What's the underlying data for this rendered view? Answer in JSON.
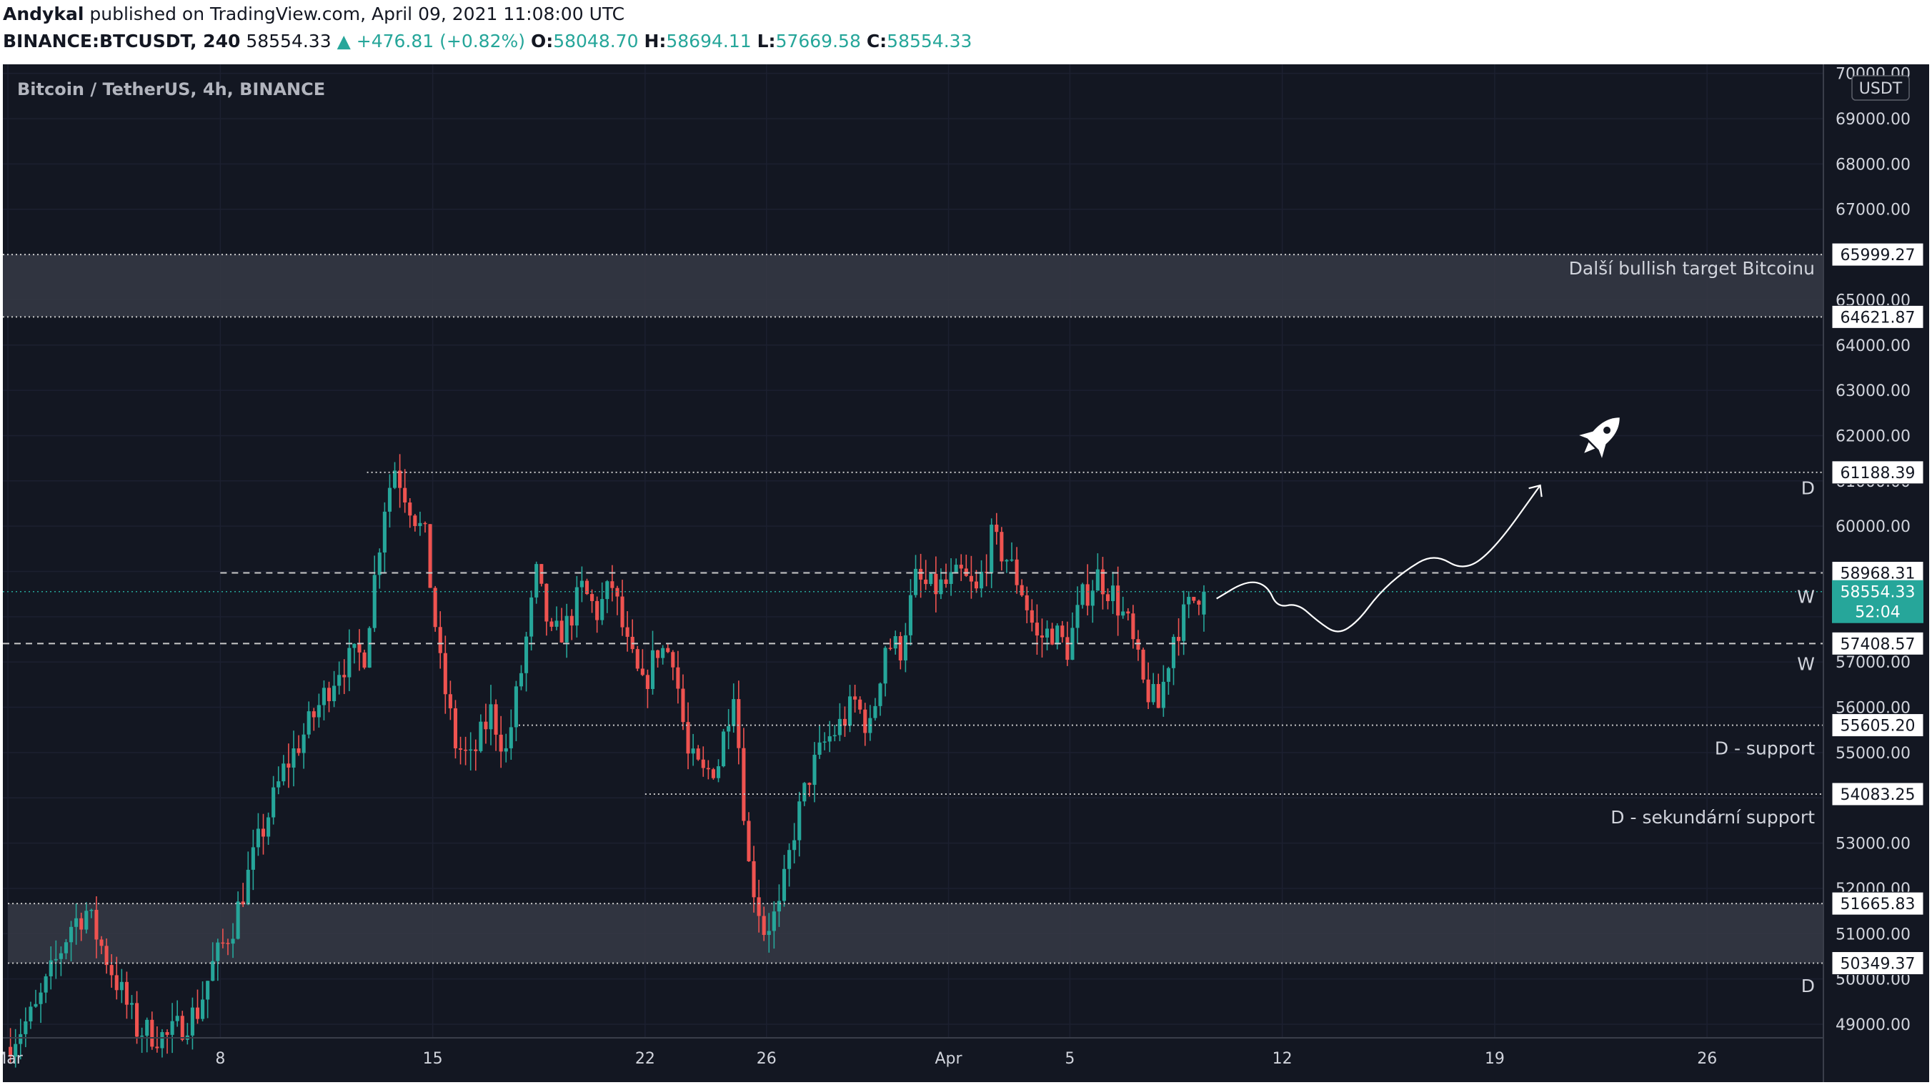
{
  "header": {
    "author": "Andykal",
    "published_text": "published on TradingView.com, April 09, 2021 11:08:00 UTC",
    "symbol": "BINANCE:BTCUSDT, 240",
    "last": "58554.33",
    "change": "▲ +476.81 (+0.82%)",
    "o_label": "O:",
    "o_value": "58048.70",
    "h_label": "H:",
    "h_value": "58694.11",
    "l_label": "L:",
    "l_value": "57669.58",
    "c_label": "C:",
    "c_value": "58554.33"
  },
  "chart_data": {
    "type": "candlestick",
    "title": "Bitcoin / TetherUS, 4h, BINANCE",
    "currency_badge": "USDT",
    "ylim": [
      48700,
      70200
    ],
    "xlim": [
      "2021-02-28T20:00",
      "2021-04-29T20:00"
    ],
    "y_ticks": [
      "49000.00",
      "50000.00",
      "51000.00",
      "52000.00",
      "53000.00",
      "54000.00",
      "55000.00",
      "56000.00",
      "57000.00",
      "58000.00",
      "59000.00",
      "60000.00",
      "61000.00",
      "62000.00",
      "63000.00",
      "64000.00",
      "65000.00",
      "66000.00",
      "67000.00",
      "68000.00",
      "69000.00",
      "70000.00"
    ],
    "x_ticks": [
      {
        "date": "2021-03-01",
        "label": "Mar"
      },
      {
        "date": "2021-03-08",
        "label": "8"
      },
      {
        "date": "2021-03-15",
        "label": "15"
      },
      {
        "date": "2021-03-22",
        "label": "22"
      },
      {
        "date": "2021-03-26",
        "label": "26"
      },
      {
        "date": "2021-04-01",
        "label": "Apr"
      },
      {
        "date": "2021-04-05",
        "label": "5"
      },
      {
        "date": "2021-04-12",
        "label": "12"
      },
      {
        "date": "2021-04-19",
        "label": "19"
      },
      {
        "date": "2021-04-26",
        "label": "26"
      }
    ],
    "candle_interval_hours": 4,
    "path": [
      [
        "2021-03-01T00:00",
        48500
      ],
      [
        "2021-03-02T00:00",
        49300
      ],
      [
        "2021-03-03T04:00",
        51200
      ],
      [
        "2021-03-03T16:00",
        51500
      ],
      [
        "2021-03-04T12:00",
        50200
      ],
      [
        "2021-03-05T08:00",
        48900
      ],
      [
        "2021-03-06T08:00",
        48700
      ],
      [
        "2021-03-07T08:00",
        49300
      ],
      [
        "2021-03-07T20:00",
        50300
      ],
      [
        "2021-03-08T12:00",
        51200
      ],
      [
        "2021-03-09T08:00",
        53000
      ],
      [
        "2021-03-10T04:00",
        54600
      ],
      [
        "2021-03-11T00:00",
        55600
      ],
      [
        "2021-03-12T00:00",
        56900
      ],
      [
        "2021-03-12T20:00",
        57200
      ],
      [
        "2021-03-13T12:00",
        60500
      ],
      [
        "2021-03-13T20:00",
        61300
      ],
      [
        "2021-03-14T08:00",
        60500
      ],
      [
        "2021-03-14T20:00",
        59700
      ],
      [
        "2021-03-15T08:00",
        56900
      ],
      [
        "2021-03-15T20:00",
        55200
      ],
      [
        "2021-03-16T08:00",
        54800
      ],
      [
        "2021-03-17T00:00",
        55900
      ],
      [
        "2021-03-17T12:00",
        55000
      ],
      [
        "2021-03-18T00:00",
        56800
      ],
      [
        "2021-03-18T12:00",
        58900
      ],
      [
        "2021-03-19T00:00",
        57500
      ],
      [
        "2021-03-19T12:00",
        57800
      ],
      [
        "2021-03-20T00:00",
        58600
      ],
      [
        "2021-03-20T12:00",
        58100
      ],
      [
        "2021-03-21T00:00",
        58700
      ],
      [
        "2021-03-21T12:00",
        57300
      ],
      [
        "2021-03-22T00:00",
        56400
      ],
      [
        "2021-03-22T12:00",
        57300
      ],
      [
        "2021-03-23T00:00",
        57200
      ],
      [
        "2021-03-23T12:00",
        54900
      ],
      [
        "2021-03-24T00:00",
        54500
      ],
      [
        "2021-03-24T12:00",
        54800
      ],
      [
        "2021-03-25T00:00",
        56500
      ],
      [
        "2021-03-25T12:00",
        52500
      ],
      [
        "2021-03-26T00:00",
        51100
      ],
      [
        "2021-03-26T12:00",
        51500
      ],
      [
        "2021-03-27T00:00",
        53300
      ],
      [
        "2021-03-27T12:00",
        54500
      ],
      [
        "2021-03-28T00:00",
        55200
      ],
      [
        "2021-03-28T12:00",
        55600
      ],
      [
        "2021-03-29T00:00",
        56100
      ],
      [
        "2021-03-29T12:00",
        55500
      ],
      [
        "2021-03-30T00:00",
        57400
      ],
      [
        "2021-03-30T12:00",
        57300
      ],
      [
        "2021-03-31T00:00",
        58800
      ],
      [
        "2021-03-31T12:00",
        58600
      ],
      [
        "2021-04-01T00:00",
        58700
      ],
      [
        "2021-04-01T12:00",
        58900
      ],
      [
        "2021-04-02T00:00",
        58500
      ],
      [
        "2021-04-02T12:00",
        59700
      ],
      [
        "2021-04-03T00:00",
        59300
      ],
      [
        "2021-04-03T12:00",
        58600
      ],
      [
        "2021-04-04T00:00",
        57500
      ],
      [
        "2021-04-04T12:00",
        57700
      ],
      [
        "2021-04-05T00:00",
        57300
      ],
      [
        "2021-04-05T12:00",
        58400
      ],
      [
        "2021-04-06T00:00",
        58900
      ],
      [
        "2021-04-06T12:00",
        58500
      ],
      [
        "2021-04-07T00:00",
        57800
      ],
      [
        "2021-04-07T12:00",
        56500
      ],
      [
        "2021-04-08T00:00",
        56000
      ],
      [
        "2021-04-08T12:00",
        57600
      ],
      [
        "2021-04-09T00:00",
        58200
      ],
      [
        "2021-04-09T08:00",
        58554
      ]
    ],
    "zones": [
      {
        "type": "rect",
        "y1": 64621.87,
        "y2": 65999.27,
        "x_start": "2021-02-28T20:00"
      },
      {
        "type": "rect",
        "y1": 50349.37,
        "y2": 51665.83,
        "x_start": "2021-03-01T00:00"
      }
    ],
    "levels": [
      {
        "price": 65999.27,
        "label": "65999.27",
        "style": "dotted",
        "x_start": "2021-02-28T20:00"
      },
      {
        "price": 64621.87,
        "label": "64621.87",
        "style": "dotted",
        "x_start": "2021-02-28T20:00"
      },
      {
        "price": 61188.39,
        "label": "61188.39",
        "style": "dotted",
        "x_start": "2021-03-12T20:00"
      },
      {
        "price": 58968.31,
        "label": "58968.31",
        "style": "dashed",
        "x_start": "2021-03-08T00:00"
      },
      {
        "price": 57408.57,
        "label": "57408.57",
        "style": "dashed",
        "x_start": "2021-02-28T20:00"
      },
      {
        "price": 55605.2,
        "label": "55605.20",
        "style": "dotted",
        "x_start": "2021-03-17T20:00"
      },
      {
        "price": 54083.25,
        "label": "54083.25",
        "style": "dotted",
        "x_start": "2021-03-22T00:00"
      },
      {
        "price": 51665.83,
        "label": "51665.83",
        "style": "dotted",
        "x_start": "2021-03-01T00:00"
      },
      {
        "price": 50349.37,
        "label": "50349.37",
        "style": "dotted",
        "x_start": "2021-03-01T00:00"
      }
    ],
    "current_price": {
      "price": 58554.33,
      "label": "58554.33",
      "countdown": "52:04"
    },
    "annotations": [
      {
        "text": "Další bullish target Bitcoinu",
        "price": 65700
      },
      {
        "text": "D",
        "price": 60850
      },
      {
        "text": "W",
        "price": 58450
      },
      {
        "text": "W",
        "price": 56960
      },
      {
        "text": "D - support",
        "price": 55100
      },
      {
        "text": "D - sekundární support",
        "price": 53580
      },
      {
        "text": "D",
        "price": 49850
      }
    ],
    "projection": [
      [
        "2021-04-09T20:00",
        58400
      ],
      [
        "2021-04-10T20:00",
        58800
      ],
      [
        "2021-04-11T12:00",
        58700
      ],
      [
        "2021-04-11T20:00",
        58200
      ],
      [
        "2021-04-12T12:00",
        58300
      ],
      [
        "2021-04-13T04:00",
        57900
      ],
      [
        "2021-04-13T20:00",
        57600
      ],
      [
        "2021-04-14T12:00",
        57900
      ],
      [
        "2021-04-15T04:00",
        58500
      ],
      [
        "2021-04-16T00:00",
        59000
      ],
      [
        "2021-04-17T00:00",
        59400
      ],
      [
        "2021-04-18T00:00",
        59000
      ],
      [
        "2021-04-19T00:00",
        59500
      ],
      [
        "2021-04-20T12:00",
        60900
      ]
    ],
    "icons": [
      "rocket-icon"
    ],
    "colors": {
      "background": "#131722",
      "up": "#26a69a",
      "down": "#ef5350",
      "grid": "#1c2030",
      "text": "#d1d4dc",
      "zone": "#363a45",
      "level": "#c9c9c9"
    }
  }
}
